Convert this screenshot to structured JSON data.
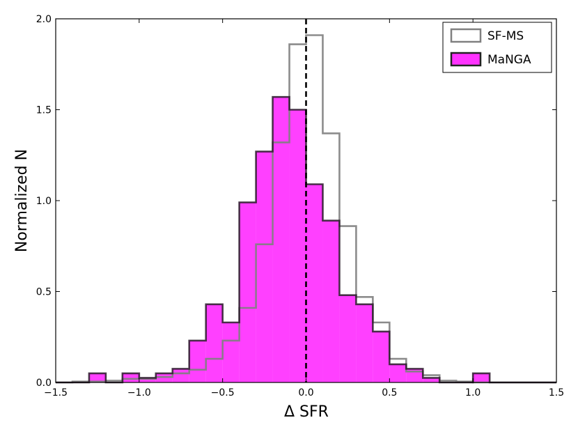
{
  "chart_data": {
    "type": "bar",
    "xlabel": "Δ SFR",
    "ylabel": "Normalized N",
    "xlim": [
      -1.5,
      1.5
    ],
    "ylim": [
      0,
      2.0
    ],
    "x_ticks": [
      "−1.5",
      "−1.0",
      "−0.5",
      "0.0",
      "0.5",
      "1.0",
      "1.5"
    ],
    "y_ticks": [
      "0.0",
      "0.5",
      "1.0",
      "1.5",
      "2.0"
    ],
    "x_tick_values": [
      -1.5,
      -1.0,
      -0.5,
      0.0,
      0.5,
      1.0,
      1.5
    ],
    "y_tick_values": [
      0,
      0.5,
      1.0,
      1.5,
      2.0
    ],
    "bin_edges": [
      -1.5,
      -1.4,
      -1.3,
      -1.2,
      -1.1,
      -1.0,
      -0.9,
      -0.8,
      -0.7,
      -0.6,
      -0.5,
      -0.4,
      -0.3,
      -0.2,
      -0.1,
      0.0,
      0.1,
      0.2,
      0.3,
      0.4,
      0.5,
      0.6,
      0.7,
      0.8,
      0.9,
      1.0,
      1.1,
      1.2,
      1.3,
      1.4,
      1.5
    ],
    "series": [
      {
        "name": "SF-MS",
        "style": "step-outline",
        "color": "#808080",
        "values": [
          0.0,
          0.005,
          0.005,
          0.01,
          0.02,
          0.02,
          0.03,
          0.05,
          0.07,
          0.13,
          0.23,
          0.41,
          0.76,
          1.32,
          1.86,
          1.91,
          1.37,
          0.86,
          0.47,
          0.33,
          0.13,
          0.06,
          0.04,
          0.01,
          0.005,
          0.0,
          0.0,
          0.0,
          0.0,
          0.0
        ]
      },
      {
        "name": "MaNGA",
        "style": "filled",
        "color": "#ff00ff",
        "values": [
          0.0,
          0.0,
          0.05,
          0.0,
          0.05,
          0.025,
          0.05,
          0.075,
          0.23,
          0.43,
          0.33,
          0.99,
          1.27,
          1.57,
          1.5,
          1.09,
          0.89,
          0.48,
          0.43,
          0.28,
          0.1,
          0.075,
          0.025,
          0.0,
          0.0,
          0.05,
          0.0,
          0.0,
          0.0,
          0.0
        ]
      }
    ],
    "annotation": {
      "type": "vertical-dashed-line",
      "x": 0.0,
      "color": "#000000"
    },
    "legend": {
      "placement": "top-right"
    },
    "grid": false
  }
}
